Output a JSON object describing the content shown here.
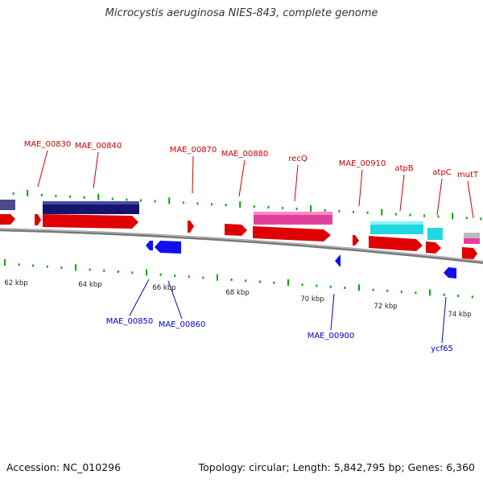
{
  "title": "Microcystis aeruginosa NIES-843, complete genome",
  "footer": {
    "accession": "Accession: NC_010296",
    "summary": "Topology: circular; Length: 5,842,795 bp; Genes: 6,360"
  },
  "colors": {
    "forward_label": "#cc0000",
    "reverse_label": "#0000cc",
    "tick": "#00aa00",
    "backbone": "#888888"
  },
  "scale_labels": [
    "62 kbp",
    "64 kbp",
    "66 kbp",
    "68 kbp",
    "70 kbp",
    "72 kbp",
    "74 kbp"
  ],
  "gene_labels_top": [
    "MAE_00830",
    "MAE_00840",
    "MAE_00870",
    "MAE_00880",
    "recQ",
    "MAE_00910",
    "atpB",
    "atpC",
    "mutT"
  ],
  "gene_labels_bottom": [
    "MAE_00850",
    "MAE_00860",
    "MAE_00900",
    "ycf65"
  ]
}
